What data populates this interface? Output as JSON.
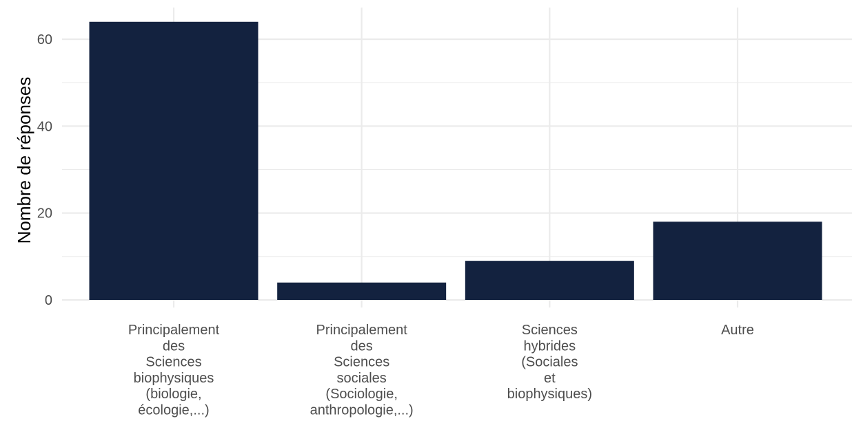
{
  "chart_data": {
    "type": "bar",
    "title": "",
    "xlabel": "",
    "ylabel": "Nombre de réponses",
    "categories": [
      [
        "Principalement",
        "des",
        "Sciences",
        "biophysiques",
        "(biologie,",
        "écologie,...)"
      ],
      [
        "Principalement",
        "des",
        "Sciences",
        "sociales",
        "(Sociologie,",
        "anthropologie,...)"
      ],
      [
        "Sciences",
        "hybrides",
        "(Sociales",
        "et",
        "biophysiques)"
      ],
      [
        "Autre"
      ]
    ],
    "values": [
      64,
      4,
      9,
      18
    ],
    "ylim": [
      0,
      67.2
    ],
    "yticks": [
      0,
      20,
      40,
      60
    ],
    "grid": true,
    "bar_color": "#13223f",
    "grid_color": "#ebebeb"
  }
}
